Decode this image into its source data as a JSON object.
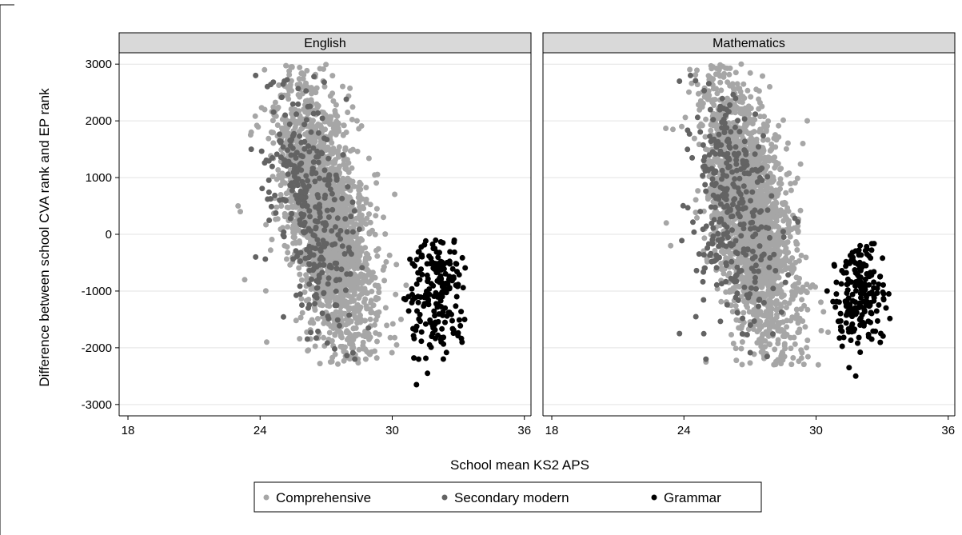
{
  "chart_data": {
    "type": "scatter",
    "xlabel": "School mean KS2 APS",
    "ylabel": "Difference between school CVA rank and EP rank",
    "xlim": [
      17.6,
      36.3
    ],
    "ylim": [
      -3200,
      3200
    ],
    "xticks": [
      18,
      24,
      30,
      36
    ],
    "xtick_labels": [
      "18",
      "24",
      "30",
      "36"
    ],
    "yticks": [
      3000,
      2000,
      1000,
      0,
      -1000,
      -2000,
      -3000
    ],
    "ytick_labels": [
      "3000",
      "2000",
      "1000",
      "0",
      "-1000",
      "-2000",
      "-3000"
    ],
    "grid": true,
    "legend_position": "bottom",
    "colors": {
      "Comprehensive": "#a6a6a6",
      "Secondary modern": "#636363",
      "Grammar": "#000000",
      "panel_header": "#d9d9d9",
      "grid": "#e3e3e3"
    },
    "legend": [
      "Comprehensive",
      "Secondary modern",
      "Grammar"
    ],
    "panels": [
      {
        "title": "English",
        "series": [
          {
            "name": "Comprehensive",
            "clouds": [
              {
                "n": 2100,
                "mx": 27.0,
                "sx": 1.05,
                "my": 300,
                "sy": 1000,
                "slope": -600,
                "xmin": 23.0,
                "xmax": 30.8,
                "ymin": -2300,
                "ymax": 3000
              }
            ],
            "values": [
              [
                23.1,
                400
              ],
              [
                23.0,
                500
              ],
              [
                23.3,
                -800
              ],
              [
                23.6,
                1800
              ],
              [
                30.2,
                -1950
              ],
              [
                30.4,
                -1500
              ],
              [
                24.2,
                2900
              ],
              [
                25.4,
                2950
              ],
              [
                28.4,
                2000
              ],
              [
                29.6,
                300
              ],
              [
                24.3,
                -1900
              ],
              [
                27.2,
                -2250
              ],
              [
                28.8,
                -2200
              ]
            ]
          },
          {
            "name": "Secondary modern",
            "clouds": [
              {
                "n": 320,
                "mx": 26.3,
                "sx": 0.95,
                "my": 500,
                "sy": 1050,
                "slope": -500,
                "xmin": 23.6,
                "xmax": 29.2,
                "ymin": -2200,
                "ymax": 2800
              }
            ],
            "values": [
              [
                23.8,
                2800
              ],
              [
                23.6,
                1500
              ],
              [
                23.8,
                -400
              ],
              [
                28.3,
                -2200
              ],
              [
                25.1,
                2700
              ]
            ]
          },
          {
            "name": "Grammar",
            "clouds": [
              {
                "n": 190,
                "mx": 32.0,
                "sx": 0.65,
                "my": -1050,
                "sy": 550,
                "slope": 0,
                "xmin": 30.5,
                "xmax": 33.4,
                "ymin": -2200,
                "ymax": -100
              }
            ],
            "values": [
              [
                31.1,
                -2650
              ],
              [
                31.6,
                -2450
              ],
              [
                30.6,
                -1150
              ],
              [
                32.3,
                -150
              ],
              [
                31.2,
                -2200
              ]
            ]
          }
        ]
      },
      {
        "title": "Mathematics",
        "series": [
          {
            "name": "Comprehensive",
            "clouds": [
              {
                "n": 2100,
                "mx": 27.0,
                "sx": 1.05,
                "my": 300,
                "sy": 1000,
                "slope": -600,
                "xmin": 23.1,
                "xmax": 30.8,
                "ymin": -2300,
                "ymax": 3000
              }
            ],
            "values": [
              [
                23.2,
                200
              ],
              [
                23.4,
                -200
              ],
              [
                23.9,
                1900
              ],
              [
                29.6,
                2000
              ],
              [
                30.1,
                -2300
              ],
              [
                25.0,
                -2250
              ],
              [
                26.6,
                3000
              ],
              [
                25.6,
                2900
              ],
              [
                29.4,
                1600
              ],
              [
                23.5,
                1850
              ]
            ]
          },
          {
            "name": "Secondary modern",
            "clouds": [
              {
                "n": 320,
                "mx": 26.2,
                "sx": 0.95,
                "my": 500,
                "sy": 1050,
                "slope": -500,
                "xmin": 23.7,
                "xmax": 29.2,
                "ymin": -2200,
                "ymax": 2850
              }
            ],
            "values": [
              [
                23.8,
                -1750
              ],
              [
                24.3,
                2800
              ],
              [
                25.0,
                -2200
              ],
              [
                23.8,
                2700
              ]
            ]
          },
          {
            "name": "Grammar",
            "clouds": [
              {
                "n": 190,
                "mx": 32.0,
                "sx": 0.65,
                "my": -1050,
                "sy": 550,
                "slope": 0,
                "xmin": 30.5,
                "xmax": 33.4,
                "ymin": -2200,
                "ymax": -150
              }
            ],
            "values": [
              [
                31.8,
                -2500
              ],
              [
                31.5,
                -2350
              ],
              [
                30.5,
                -1000
              ],
              [
                32.0,
                -200
              ],
              [
                33.3,
                -1050
              ]
            ]
          }
        ]
      }
    ]
  }
}
